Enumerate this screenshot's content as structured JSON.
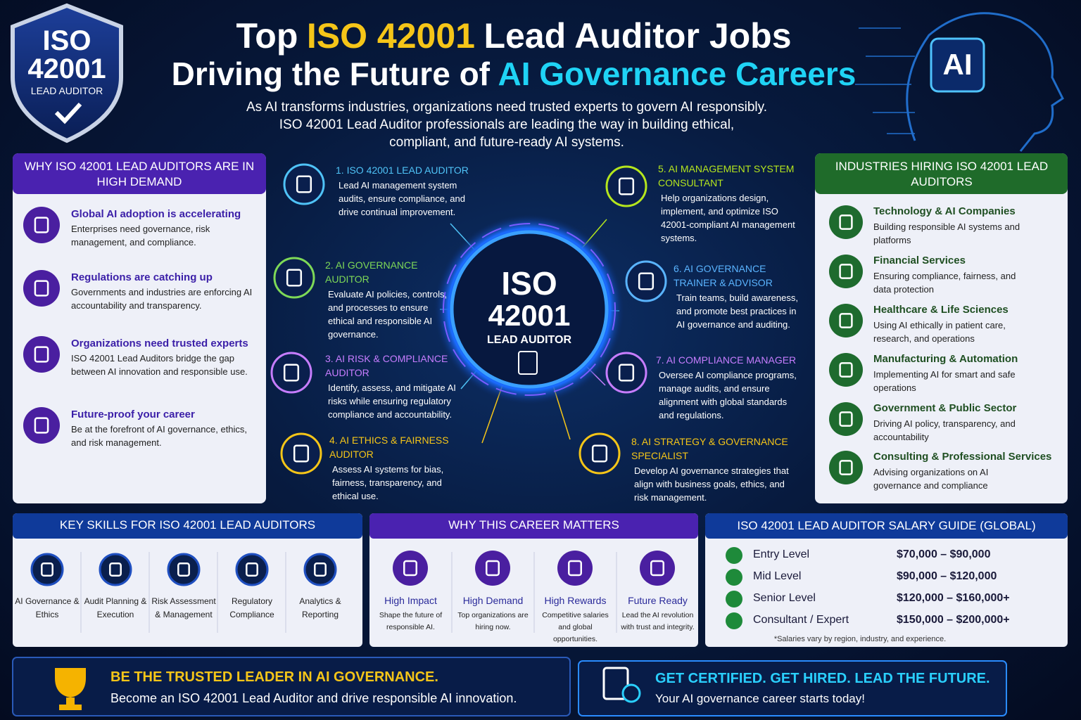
{
  "header": {
    "badge": {
      "line1": "ISO",
      "line2": "42001",
      "line3": "LEAD AUDITOR"
    },
    "title_line1": {
      "lead": "Top",
      "highlight": "ISO 42001",
      "rest": "Lead Auditor Jobs"
    },
    "title_line2": {
      "lead": "Driving the Future of",
      "highlight": "AI Governance Careers"
    },
    "subtitle": [
      "As AI transforms industries, organizations need trusted experts to govern AI responsibly.",
      "ISO 42001 Lead Auditor professionals are leading the way in building ethical,",
      "compliant, and future-ready AI systems."
    ],
    "ai_label": "AI"
  },
  "why_demand": {
    "title": "WHY ISO 42001 LEAD AUDITORS ARE IN HIGH DEMAND",
    "items": [
      {
        "title": "Global AI adoption is accelerating",
        "text": "Enterprises need governance, risk management, and compliance."
      },
      {
        "title": "Regulations are catching up",
        "text": "Governments and industries are enforcing AI accountability and transparency."
      },
      {
        "title": "Organizations need trusted experts",
        "text": "ISO 42001 Lead Auditors bridge the gap between AI innovation and responsible use."
      },
      {
        "title": "Future-proof your career",
        "text": "Be at the forefront of AI governance, ethics, and risk management."
      }
    ]
  },
  "center": {
    "line1": "ISO",
    "line2": "42001",
    "line3": "LEAD AUDITOR"
  },
  "roles": [
    {
      "title": "1. ISO 42001 LEAD AUDITOR",
      "text": "Lead AI management system audits, ensure compliance, and drive continual improvement."
    },
    {
      "title": "2. AI GOVERNANCE AUDITOR",
      "text": "Evaluate AI policies, controls, and processes to ensure ethical and responsible AI governance."
    },
    {
      "title": "3. AI RISK & COMPLIANCE AUDITOR",
      "text": "Identify, assess, and mitigate AI risks while ensuring regulatory compliance and accountability."
    },
    {
      "title": "4. AI ETHICS & FAIRNESS AUDITOR",
      "text": "Assess AI systems for bias, fairness, transparency, and ethical use."
    },
    {
      "title": "5. AI MANAGEMENT SYSTEM CONSULTANT",
      "text": "Help organizations design, implement, and optimize ISO 42001-compliant AI management systems."
    },
    {
      "title": "6. AI GOVERNANCE TRAINER & ADVISOR",
      "text": "Train teams, build awareness, and promote best practices in AI governance and auditing."
    },
    {
      "title": "7. AI COMPLIANCE MANAGER",
      "text": "Oversee AI compliance programs, manage audits, and ensure alignment with global standards and regulations."
    },
    {
      "title": "8. AI STRATEGY & GOVERNANCE SPECIALIST",
      "text": "Develop AI governance strategies that align with business goals, ethics, and risk management."
    }
  ],
  "industries": {
    "title": "INDUSTRIES HIRING ISO 42001 LEAD AUDITORS",
    "items": [
      {
        "title": "Technology & AI Companies",
        "text": "Building responsible AI systems and platforms"
      },
      {
        "title": "Financial Services",
        "text": "Ensuring compliance, fairness, and data protection"
      },
      {
        "title": "Healthcare & Life Sciences",
        "text": "Using AI ethically in patient care, research, and operations"
      },
      {
        "title": "Manufacturing & Automation",
        "text": "Implementing AI for smart and safe operations"
      },
      {
        "title": "Government & Public Sector",
        "text": "Driving AI policy, transparency, and accountability"
      },
      {
        "title": "Consulting & Professional Services",
        "text": "Advising organizations on AI governance and compliance"
      }
    ]
  },
  "skills": {
    "title": "KEY SKILLS FOR ISO 42001 LEAD AUDITORS",
    "items": [
      "AI Governance & Ethics",
      "Audit Planning & Execution",
      "Risk Assessment & Management",
      "Regulatory Compliance",
      "Analytics & Reporting"
    ]
  },
  "career": {
    "title": "WHY THIS CAREER MATTERS",
    "items": [
      {
        "title": "High Impact",
        "text": "Shape the future of responsible AI."
      },
      {
        "title": "High Demand",
        "text": "Top organizations are hiring now."
      },
      {
        "title": "High Rewards",
        "text": "Competitive salaries and global opportunities."
      },
      {
        "title": "Future Ready",
        "text": "Lead the AI revolution with trust and integrity."
      }
    ]
  },
  "salary": {
    "title": "ISO 42001 LEAD AUDITOR SALARY GUIDE (GLOBAL)",
    "rows": [
      {
        "level": "Entry Level",
        "range": "$70,000 – $90,000"
      },
      {
        "level": "Mid Level",
        "range": "$90,000 – $120,000"
      },
      {
        "level": "Senior Level",
        "range": "$120,000 – $160,000+"
      },
      {
        "level": "Consultant / Expert",
        "range": "$150,000 – $200,000+"
      }
    ],
    "note": "*Salaries vary by region, industry, and experience."
  },
  "footer": {
    "left": {
      "title": "BE THE TRUSTED LEADER IN AI GOVERNANCE.",
      "text": "Become an ISO 42001 Lead Auditor and drive responsible AI innovation."
    },
    "right": {
      "title": "GET CERTIFIED. GET HIRED. LEAD THE FUTURE.",
      "text": "Your AI governance career starts today!"
    }
  }
}
